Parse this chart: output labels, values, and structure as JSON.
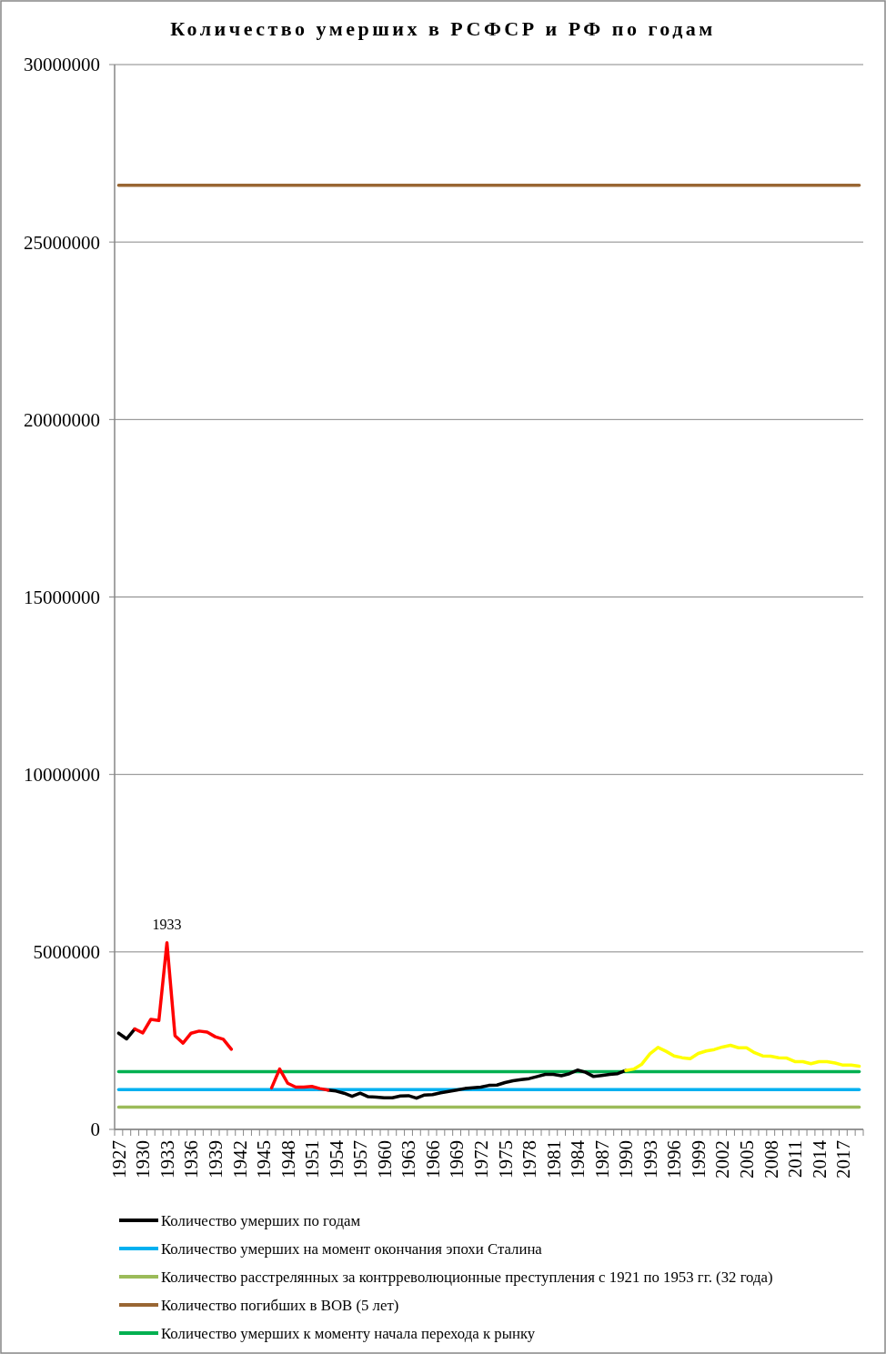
{
  "chart_data": {
    "type": "line",
    "title": "Количество умерших в РСФСР и РФ по годам",
    "categories": [
      "1927",
      null,
      null,
      "1930",
      null,
      null,
      "1933",
      null,
      null,
      "1936",
      null,
      null,
      "1939",
      null,
      null,
      "1942",
      null,
      null,
      "1945",
      null,
      null,
      "1948",
      null,
      null,
      "1951",
      null,
      null,
      "1954",
      null,
      null,
      "1957",
      null,
      null,
      "1960",
      null,
      null,
      "1963",
      null,
      null,
      "1966",
      null,
      null,
      "1969",
      null,
      null,
      "1972",
      null,
      null,
      "1975",
      null,
      null,
      "1978",
      null,
      null,
      "1981",
      null,
      null,
      "1984",
      null,
      null,
      "1987",
      null,
      null,
      "1990",
      null,
      null,
      "1993",
      null,
      null,
      "1996",
      null,
      null,
      "1999",
      null,
      null,
      "2002",
      null,
      null,
      "2005",
      null,
      null,
      "2008",
      null,
      null,
      "2011",
      null,
      null,
      "2014",
      null,
      null,
      "2017",
      null,
      null
    ],
    "series": [
      {
        "name": "Количество умерших по годам",
        "color": "#000000",
        "values": [
          2710000,
          2550000,
          2830000,
          null,
          null,
          null,
          null,
          null,
          null,
          null,
          null,
          null,
          null,
          null,
          null,
          null,
          null,
          null,
          null,
          null,
          null,
          null,
          null,
          null,
          null,
          null,
          1110000,
          1080000,
          1020000,
          930000,
          1020000,
          920000,
          910000,
          890000,
          890000,
          940000,
          950000,
          880000,
          970000,
          980000,
          1030000,
          1070000,
          1110000,
          1150000,
          1170000,
          1190000,
          1240000,
          1250000,
          1320000,
          1370000,
          1400000,
          1430000,
          1490000,
          1550000,
          1550000,
          1510000,
          1570000,
          1670000,
          1610000,
          1490000,
          1520000,
          1550000,
          1570000,
          1660000,
          null,
          null,
          null,
          null,
          null,
          null,
          null,
          null,
          null,
          null,
          null,
          null,
          null,
          null,
          null,
          null,
          null,
          null,
          null,
          null,
          null,
          null,
          null,
          null,
          null,
          null,
          null,
          null,
          null
        ]
      },
      {
        "name": "Количество умерших на момент окончания эпохи Сталина",
        "color": "#00b0f0",
        "values": [
          1120000,
          1120000,
          1120000,
          1120000,
          1120000,
          1120000,
          1120000,
          1120000,
          1120000,
          1120000,
          1120000,
          1120000,
          1120000,
          1120000,
          1120000,
          1120000,
          1120000,
          1120000,
          1120000,
          1120000,
          1120000,
          1120000,
          1120000,
          1120000,
          1120000,
          1120000,
          1120000,
          1120000,
          1120000,
          1120000,
          1120000,
          1120000,
          1120000,
          1120000,
          1120000,
          1120000,
          1120000,
          1120000,
          1120000,
          1120000,
          1120000,
          1120000,
          1120000,
          1120000,
          1120000,
          1120000,
          1120000,
          1120000,
          1120000,
          1120000,
          1120000,
          1120000,
          1120000,
          1120000,
          1120000,
          1120000,
          1120000,
          1120000,
          1120000,
          1120000,
          1120000,
          1120000,
          1120000,
          1120000,
          1120000,
          1120000,
          1120000,
          1120000,
          1120000,
          1120000,
          1120000,
          1120000,
          1120000,
          1120000,
          1120000,
          1120000,
          1120000,
          1120000,
          1120000,
          1120000,
          1120000,
          1120000,
          1120000,
          1120000,
          1120000,
          1120000,
          1120000,
          1120000,
          1120000,
          1120000,
          1120000,
          1120000,
          1120000
        ]
      },
      {
        "name": "Количество расстрелянных за контрреволюционные преступления с 1921 по 1953 гг. (32 года)",
        "color": "#9bbb59",
        "values": [
          630000,
          630000,
          630000,
          630000,
          630000,
          630000,
          630000,
          630000,
          630000,
          630000,
          630000,
          630000,
          630000,
          630000,
          630000,
          630000,
          630000,
          630000,
          630000,
          630000,
          630000,
          630000,
          630000,
          630000,
          630000,
          630000,
          630000,
          630000,
          630000,
          630000,
          630000,
          630000,
          630000,
          630000,
          630000,
          630000,
          630000,
          630000,
          630000,
          630000,
          630000,
          630000,
          630000,
          630000,
          630000,
          630000,
          630000,
          630000,
          630000,
          630000,
          630000,
          630000,
          630000,
          630000,
          630000,
          630000,
          630000,
          630000,
          630000,
          630000,
          630000,
          630000,
          630000,
          630000,
          630000,
          630000,
          630000,
          630000,
          630000,
          630000,
          630000,
          630000,
          630000,
          630000,
          630000,
          630000,
          630000,
          630000,
          630000,
          630000,
          630000,
          630000,
          630000,
          630000,
          630000,
          630000,
          630000,
          630000,
          630000,
          630000,
          630000,
          630000,
          630000
        ]
      },
      {
        "name": "Количество погибших в ВОВ (5 лет)",
        "color": "#996633",
        "values": [
          26600000,
          26600000,
          26600000,
          26600000,
          26600000,
          26600000,
          26600000,
          26600000,
          26600000,
          26600000,
          26600000,
          26600000,
          26600000,
          26600000,
          26600000,
          26600000,
          26600000,
          26600000,
          26600000,
          26600000,
          26600000,
          26600000,
          26600000,
          26600000,
          26600000,
          26600000,
          26600000,
          26600000,
          26600000,
          26600000,
          26600000,
          26600000,
          26600000,
          26600000,
          26600000,
          26600000,
          26600000,
          26600000,
          26600000,
          26600000,
          26600000,
          26600000,
          26600000,
          26600000,
          26600000,
          26600000,
          26600000,
          26600000,
          26600000,
          26600000,
          26600000,
          26600000,
          26600000,
          26600000,
          26600000,
          26600000,
          26600000,
          26600000,
          26600000,
          26600000,
          26600000,
          26600000,
          26600000,
          26600000,
          26600000,
          26600000,
          26600000,
          26600000,
          26600000,
          26600000,
          26600000,
          26600000,
          26600000,
          26600000,
          26600000,
          26600000,
          26600000,
          26600000,
          26600000,
          26600000,
          26600000,
          26600000,
          26600000,
          26600000,
          26600000,
          26600000,
          26600000,
          26600000,
          26600000,
          26600000,
          26600000,
          26600000,
          26600000
        ]
      },
      {
        "name": "Количество умерших к моменту начала перехода к рынку",
        "color": "#00b050",
        "values": [
          1630000,
          1630000,
          1630000,
          1630000,
          1630000,
          1630000,
          1630000,
          1630000,
          1630000,
          1630000,
          1630000,
          1630000,
          1630000,
          1630000,
          1630000,
          1630000,
          1630000,
          1630000,
          1630000,
          1630000,
          1630000,
          1630000,
          1630000,
          1630000,
          1630000,
          1630000,
          1630000,
          1630000,
          1630000,
          1630000,
          1630000,
          1630000,
          1630000,
          1630000,
          1630000,
          1630000,
          1630000,
          1630000,
          1630000,
          1630000,
          1630000,
          1630000,
          1630000,
          1630000,
          1630000,
          1630000,
          1630000,
          1630000,
          1630000,
          1630000,
          1630000,
          1630000,
          1630000,
          1630000,
          1630000,
          1630000,
          1630000,
          1630000,
          1630000,
          1630000,
          1630000,
          1630000,
          1630000,
          1630000,
          1630000,
          1630000,
          1630000,
          1630000,
          1630000,
          1630000,
          1630000,
          1630000,
          1630000,
          1630000,
          1630000,
          1630000,
          1630000,
          1630000,
          1630000,
          1630000,
          1630000,
          1630000,
          1630000,
          1630000,
          1630000,
          1630000,
          1630000,
          1630000,
          1630000,
          1630000,
          1630000,
          1630000,
          1630000
        ]
      },
      {
        "color": "#ff0000",
        "values": [
          null,
          null,
          2830000,
          2720000,
          3100000,
          3070000,
          5260000,
          2640000,
          2430000,
          2710000,
          2770000,
          2740000,
          2610000,
          2540000,
          2260000,
          null,
          null,
          null,
          null,
          1170000,
          1700000,
          1300000,
          1190000,
          1190000,
          1210000,
          1150000,
          1110000,
          null,
          null,
          null,
          null,
          null,
          null,
          null,
          null,
          null,
          null,
          null,
          null,
          null,
          null,
          null,
          null,
          null,
          null,
          null,
          null,
          null,
          null,
          null,
          null,
          null,
          null,
          null,
          null,
          null,
          null,
          null,
          null,
          null,
          null,
          null,
          null,
          null,
          null,
          null,
          null,
          null,
          null,
          null,
          null,
          null,
          null,
          null,
          null,
          null,
          null,
          null,
          null,
          null,
          null,
          null,
          null,
          null,
          null,
          null,
          null,
          null,
          null,
          null,
          null,
          null,
          null
        ]
      },
      {
        "color": "#ffff00",
        "values": [
          null,
          null,
          null,
          null,
          null,
          null,
          null,
          null,
          null,
          null,
          null,
          null,
          null,
          null,
          null,
          null,
          null,
          null,
          null,
          null,
          null,
          null,
          null,
          null,
          null,
          null,
          null,
          null,
          null,
          null,
          null,
          null,
          null,
          null,
          null,
          null,
          null,
          null,
          null,
          null,
          null,
          null,
          null,
          null,
          null,
          null,
          null,
          null,
          null,
          null,
          null,
          null,
          null,
          null,
          null,
          null,
          null,
          null,
          null,
          null,
          null,
          null,
          null,
          1660000,
          1700000,
          1840000,
          2130000,
          2310000,
          2200000,
          2070000,
          2020000,
          1990000,
          2140000,
          2210000,
          2250000,
          2320000,
          2370000,
          2300000,
          2300000,
          2160000,
          2070000,
          2060000,
          2020000,
          2010000,
          1910000,
          1910000,
          1850000,
          1910000,
          1910000,
          1870000,
          1810000,
          1810000,
          1780000
        ]
      }
    ],
    "annotations": [
      {
        "text": "1933",
        "x": "1933",
        "y": 5260000
      }
    ],
    "ylim": [
      0,
      30000000
    ],
    "yticks": [
      0,
      5000000,
      10000000,
      15000000,
      20000000,
      25000000,
      30000000
    ],
    "grid": "y",
    "legend": "bottom"
  }
}
